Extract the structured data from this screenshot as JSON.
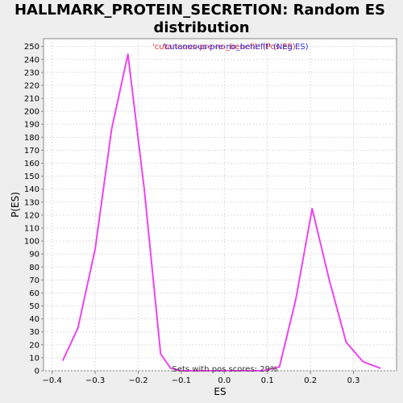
{
  "chart_data": {
    "type": "line",
    "title_line1": "HALLMARK_PROTEIN_SECRETION: Random ES",
    "title_line2": "distribution",
    "xlabel": "ES",
    "ylabel": "P(ES)",
    "xlim": [
      -0.42,
      0.4
    ],
    "ylim": [
      0,
      256
    ],
    "x_ticks": [
      -0.4,
      -0.3,
      -0.2,
      -0.1,
      0.0,
      0.1,
      0.2,
      0.3
    ],
    "x_tick_labels": [
      "−0.4",
      "−0.3",
      "−0.2",
      "−0.1",
      "0.0",
      "0.1",
      "0.2",
      "0.3"
    ],
    "y_ticks": [
      0,
      10,
      20,
      30,
      40,
      50,
      60,
      70,
      80,
      90,
      100,
      110,
      120,
      130,
      140,
      150,
      160,
      170,
      180,
      190,
      200,
      210,
      220,
      230,
      240,
      250
    ],
    "grid": true,
    "legend": {
      "pos_label": "'cutaneous-pre-no_benefit' (Pos ES)",
      "neg_label": "'cutaneous-pre-no_benefit' (Neg ES)",
      "pos_color": "#e03030",
      "neg_color": "#3030e0",
      "placement": "top-center"
    },
    "series": [
      {
        "color": "#ee44ee",
        "x": [
          -0.375,
          -0.34,
          -0.3,
          -0.262,
          -0.224,
          -0.186,
          -0.148,
          -0.125,
          -0.1,
          -0.08,
          0.0,
          0.09,
          0.128,
          0.166,
          0.204,
          0.243,
          0.283,
          0.322,
          0.362
        ],
        "y": [
          8,
          33,
          94,
          186,
          244,
          140,
          13,
          2,
          0,
          0,
          0,
          0,
          3,
          55,
          125,
          71,
          22,
          7,
          2
        ]
      }
    ],
    "annotation": "Sets with pos scores: 29%"
  },
  "colors": {
    "background": "#eeeeee",
    "plot_background": "#ffffff",
    "grid": "#dddddd",
    "axis": "#888888"
  }
}
